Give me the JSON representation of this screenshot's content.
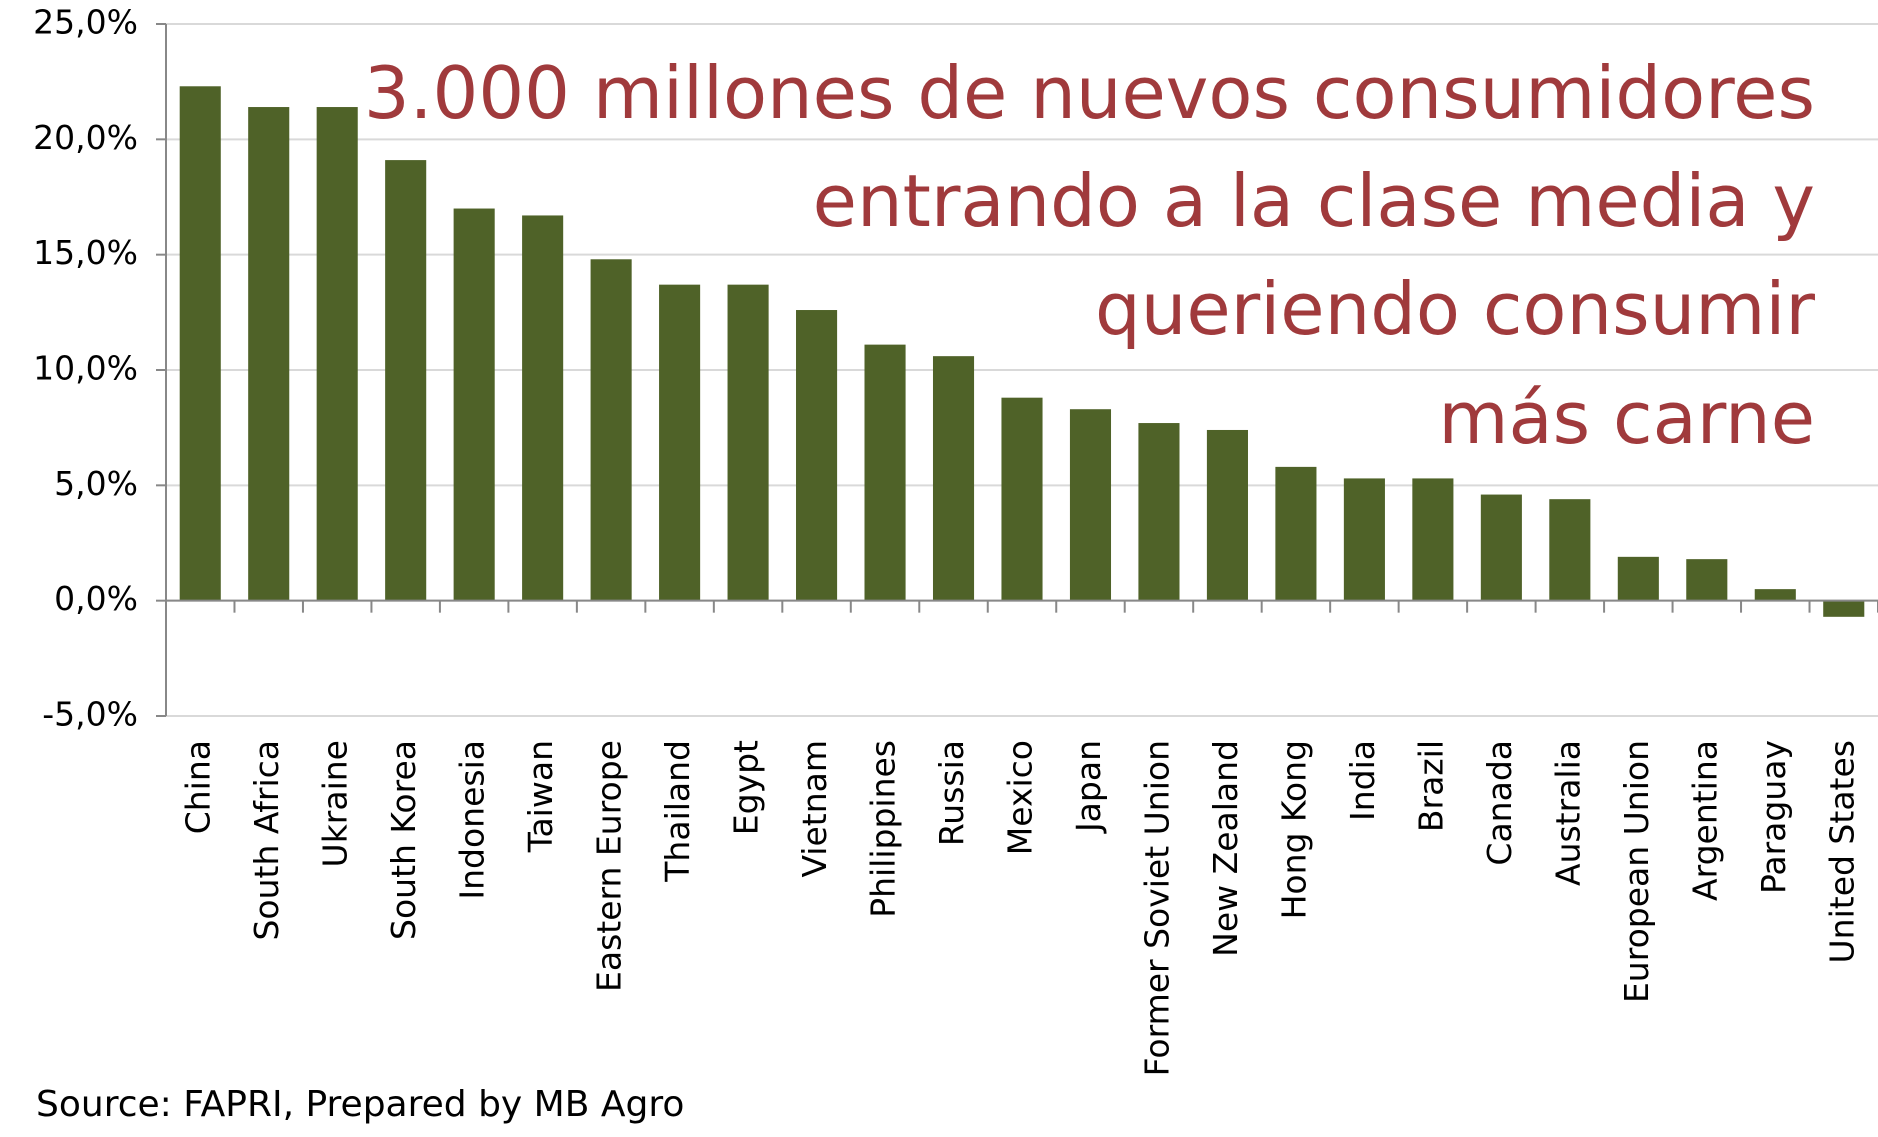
{
  "chart_data": {
    "type": "bar",
    "annotation": [
      "3.000 millones de nuevos consumidores",
      "entrando a la clase media y",
      "queriendo consumir",
      "más carne"
    ],
    "source": "Source: FAPRI, Prepared by MB Agro",
    "categories": [
      "China",
      "South Africa",
      "Ukraine",
      "South Korea",
      "Indonesia",
      "Taiwan",
      "Eastern Europe",
      "Thailand",
      "Egypt",
      "Vietnam",
      "Philippines",
      "Russia",
      "Mexico",
      "Japan",
      "Former Soviet Union",
      "New Zealand",
      "Hong Kong",
      "India",
      "Brazil",
      "Canada",
      "Australia",
      "European Union",
      "Argentina",
      "Paraguay",
      "United States"
    ],
    "values": [
      22.3,
      21.4,
      21.4,
      19.1,
      17.0,
      16.7,
      14.8,
      13.7,
      13.7,
      12.6,
      11.1,
      10.6,
      8.8,
      8.3,
      7.7,
      7.4,
      5.8,
      5.3,
      5.3,
      4.6,
      4.4,
      1.9,
      1.8,
      0.5,
      -0.7
    ],
    "color": "#4f6228",
    "ylim": [
      -5,
      25
    ],
    "yticks": [
      {
        "value": -5,
        "label": "-5,0%"
      },
      {
        "value": 0,
        "label": "0,0%"
      },
      {
        "value": 5,
        "label": "5,0%"
      },
      {
        "value": 10,
        "label": "10,0%"
      },
      {
        "value": 15,
        "label": "15,0%"
      },
      {
        "value": 20,
        "label": "20,0%"
      },
      {
        "value": 25,
        "label": "25,0%"
      }
    ],
    "grid": true
  }
}
